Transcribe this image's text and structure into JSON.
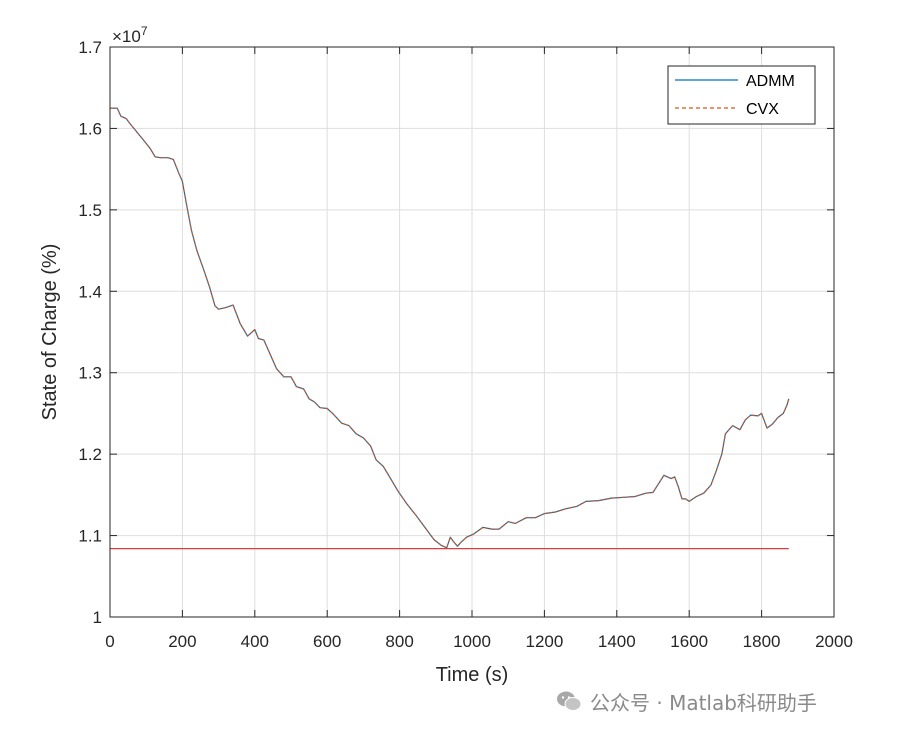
{
  "chart_data": {
    "type": "line",
    "xlabel": "Time (s)",
    "ylabel": "State of Charge (%)",
    "xlim": [
      0,
      2000
    ],
    "ylim": [
      10000000,
      17000000
    ],
    "x_ticks": [
      0,
      200,
      400,
      600,
      800,
      1000,
      1200,
      1400,
      1600,
      1800,
      2000
    ],
    "x_tick_labels": [
      "0",
      "200",
      "400",
      "600",
      "800",
      "1000",
      "1200",
      "1400",
      "1600",
      "1800",
      "2000"
    ],
    "y_ticks": [
      10000000,
      11000000,
      12000000,
      13000000,
      14000000,
      15000000,
      16000000,
      17000000
    ],
    "y_tick_labels": [
      "1",
      "1.1",
      "1.2",
      "1.3",
      "1.4",
      "1.5",
      "1.6",
      "1.7"
    ],
    "y_exponent_base": "×10",
    "y_exponent_power": "7",
    "grid": true,
    "legend_position": "top-right",
    "series": [
      {
        "name": "ADMM",
        "style": "solid",
        "color": "#0072BD",
        "x": [
          0,
          20,
          30,
          45,
          55,
          70,
          90,
          110,
          125,
          140,
          160,
          175,
          190,
          200,
          210,
          225,
          240,
          260,
          275,
          290,
          300,
          320,
          340,
          360,
          380,
          400,
          410,
          425,
          445,
          460,
          480,
          500,
          515,
          535,
          550,
          565,
          580,
          600,
          615,
          640,
          660,
          680,
          700,
          720,
          735,
          755,
          775,
          795,
          820,
          845,
          870,
          895,
          915,
          930,
          940,
          950,
          960,
          970,
          985,
          1005,
          1030,
          1055,
          1075,
          1100,
          1120,
          1150,
          1175,
          1200,
          1230,
          1260,
          1290,
          1315,
          1350,
          1385,
          1420,
          1450,
          1480,
          1500,
          1530,
          1550,
          1560,
          1570,
          1580,
          1590,
          1600,
          1620,
          1640,
          1660,
          1675,
          1690,
          1700,
          1720,
          1740,
          1755,
          1770,
          1790,
          1800,
          1815,
          1830,
          1845,
          1860,
          1870,
          1875
        ],
        "values": [
          16250000,
          16250000,
          16150000,
          16120000,
          16060000,
          15980000,
          15870000,
          15760000,
          15650000,
          15640000,
          15640000,
          15620000,
          15450000,
          15350000,
          15100000,
          14750000,
          14500000,
          14250000,
          14050000,
          13820000,
          13780000,
          13800000,
          13830000,
          13600000,
          13450000,
          13530000,
          13420000,
          13400000,
          13200000,
          13050000,
          12950000,
          12950000,
          12830000,
          12800000,
          12680000,
          12640000,
          12570000,
          12560000,
          12500000,
          12380000,
          12350000,
          12250000,
          12200000,
          12100000,
          11930000,
          11850000,
          11700000,
          11550000,
          11390000,
          11250000,
          11100000,
          10950000,
          10880000,
          10850000,
          10980000,
          10920000,
          10870000,
          10920000,
          10980000,
          11020000,
          11100000,
          11080000,
          11080000,
          11170000,
          11150000,
          11220000,
          11220000,
          11270000,
          11290000,
          11330000,
          11360000,
          11420000,
          11430000,
          11460000,
          11470000,
          11480000,
          11520000,
          11530000,
          11740000,
          11700000,
          11720000,
          11600000,
          11450000,
          11450000,
          11420000,
          11480000,
          11520000,
          11620000,
          11800000,
          12000000,
          12250000,
          12350000,
          12300000,
          12420000,
          12480000,
          12470000,
          12500000,
          12320000,
          12370000,
          12450000,
          12500000,
          12600000,
          12680000
        ]
      },
      {
        "name": "CVX",
        "style": "dashed",
        "color": "#D95319",
        "x": [
          0,
          20,
          30,
          45,
          55,
          70,
          90,
          110,
          125,
          140,
          160,
          175,
          190,
          200,
          210,
          225,
          240,
          260,
          275,
          290,
          300,
          320,
          340,
          360,
          380,
          400,
          410,
          425,
          445,
          460,
          480,
          500,
          515,
          535,
          550,
          565,
          580,
          600,
          615,
          640,
          660,
          680,
          700,
          720,
          735,
          755,
          775,
          795,
          820,
          845,
          870,
          895,
          915,
          930,
          940,
          950,
          960,
          970,
          985,
          1005,
          1030,
          1055,
          1075,
          1100,
          1120,
          1150,
          1175,
          1200,
          1230,
          1260,
          1290,
          1315,
          1350,
          1385,
          1420,
          1450,
          1480,
          1500,
          1530,
          1550,
          1560,
          1570,
          1580,
          1590,
          1600,
          1620,
          1640,
          1660,
          1675,
          1690,
          1700,
          1720,
          1740,
          1755,
          1770,
          1790,
          1800,
          1815,
          1830,
          1845,
          1860,
          1870,
          1875
        ],
        "values": [
          16250000,
          16250000,
          16150000,
          16120000,
          16060000,
          15980000,
          15870000,
          15760000,
          15650000,
          15640000,
          15640000,
          15620000,
          15450000,
          15350000,
          15100000,
          14750000,
          14500000,
          14250000,
          14050000,
          13820000,
          13780000,
          13800000,
          13830000,
          13600000,
          13450000,
          13530000,
          13420000,
          13400000,
          13200000,
          13050000,
          12950000,
          12950000,
          12830000,
          12800000,
          12680000,
          12640000,
          12570000,
          12560000,
          12500000,
          12380000,
          12350000,
          12250000,
          12200000,
          12100000,
          11930000,
          11850000,
          11700000,
          11550000,
          11390000,
          11250000,
          11100000,
          10950000,
          10880000,
          10850000,
          10980000,
          10920000,
          10870000,
          10920000,
          10980000,
          11020000,
          11100000,
          11080000,
          11080000,
          11170000,
          11150000,
          11220000,
          11220000,
          11270000,
          11290000,
          11330000,
          11360000,
          11420000,
          11430000,
          11460000,
          11470000,
          11480000,
          11520000,
          11530000,
          11740000,
          11700000,
          11720000,
          11600000,
          11450000,
          11450000,
          11420000,
          11480000,
          11520000,
          11620000,
          11800000,
          12000000,
          12250000,
          12350000,
          12300000,
          12420000,
          12480000,
          12470000,
          12500000,
          12320000,
          12370000,
          12450000,
          12500000,
          12600000,
          12680000
        ]
      },
      {
        "style": "solid",
        "color": "#E03C3C",
        "x": [
          0,
          1875
        ],
        "values": [
          10840000,
          10840000
        ]
      }
    ]
  },
  "watermark": {
    "text": "公众号 · Matlab科研助手",
    "icon": "wechat-icon",
    "color": "#8a8a8a"
  }
}
